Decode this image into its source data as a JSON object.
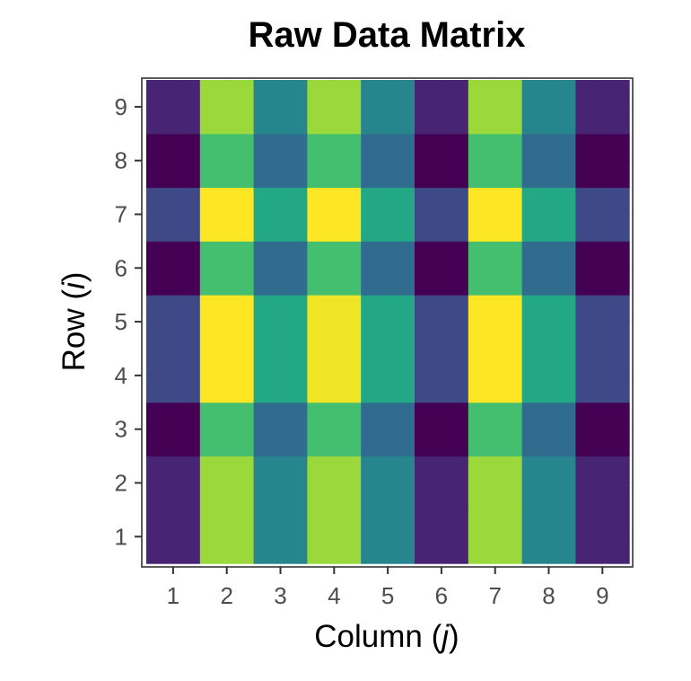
{
  "chart_data": {
    "type": "heatmap",
    "title": "Raw Data Matrix",
    "xlabel": {
      "prefix": "Column (",
      "var": "j",
      "suffix": ")"
    },
    "ylabel": {
      "prefix": "Row (",
      "var": "i",
      "suffix": ")"
    },
    "x_categories": [
      "1",
      "2",
      "3",
      "4",
      "5",
      "6",
      "7",
      "8",
      "9"
    ],
    "y_categories": [
      "1",
      "2",
      "3",
      "4",
      "5",
      "6",
      "7",
      "8",
      "9"
    ],
    "colormap": "viridis",
    "value_range": [
      0,
      1
    ],
    "grid": true,
    "rows": [
      {
        "row": "1",
        "values": [
          0.1,
          0.85,
          0.45,
          0.85,
          0.45,
          0.1,
          0.85,
          0.45,
          0.1
        ]
      },
      {
        "row": "2",
        "values": [
          0.1,
          0.85,
          0.45,
          0.85,
          0.45,
          0.1,
          0.85,
          0.45,
          0.1
        ]
      },
      {
        "row": "3",
        "values": [
          0.0,
          0.7,
          0.35,
          0.7,
          0.35,
          0.0,
          0.7,
          0.35,
          0.0
        ]
      },
      {
        "row": "4",
        "values": [
          0.22,
          1.0,
          0.6,
          0.98,
          0.6,
          0.22,
          1.0,
          0.6,
          0.22
        ]
      },
      {
        "row": "5",
        "values": [
          0.22,
          1.0,
          0.6,
          0.98,
          0.6,
          0.22,
          1.0,
          0.6,
          0.22
        ]
      },
      {
        "row": "6",
        "values": [
          0.0,
          0.7,
          0.35,
          0.7,
          0.35,
          0.0,
          0.7,
          0.35,
          0.0
        ]
      },
      {
        "row": "7",
        "values": [
          0.22,
          1.0,
          0.6,
          1.0,
          0.6,
          0.22,
          1.0,
          0.6,
          0.22
        ]
      },
      {
        "row": "8",
        "values": [
          0.0,
          0.7,
          0.35,
          0.7,
          0.35,
          0.0,
          0.7,
          0.35,
          0.0
        ]
      },
      {
        "row": "9",
        "values": [
          0.1,
          0.85,
          0.45,
          0.85,
          0.45,
          0.1,
          0.85,
          0.45,
          0.1
        ]
      }
    ]
  }
}
